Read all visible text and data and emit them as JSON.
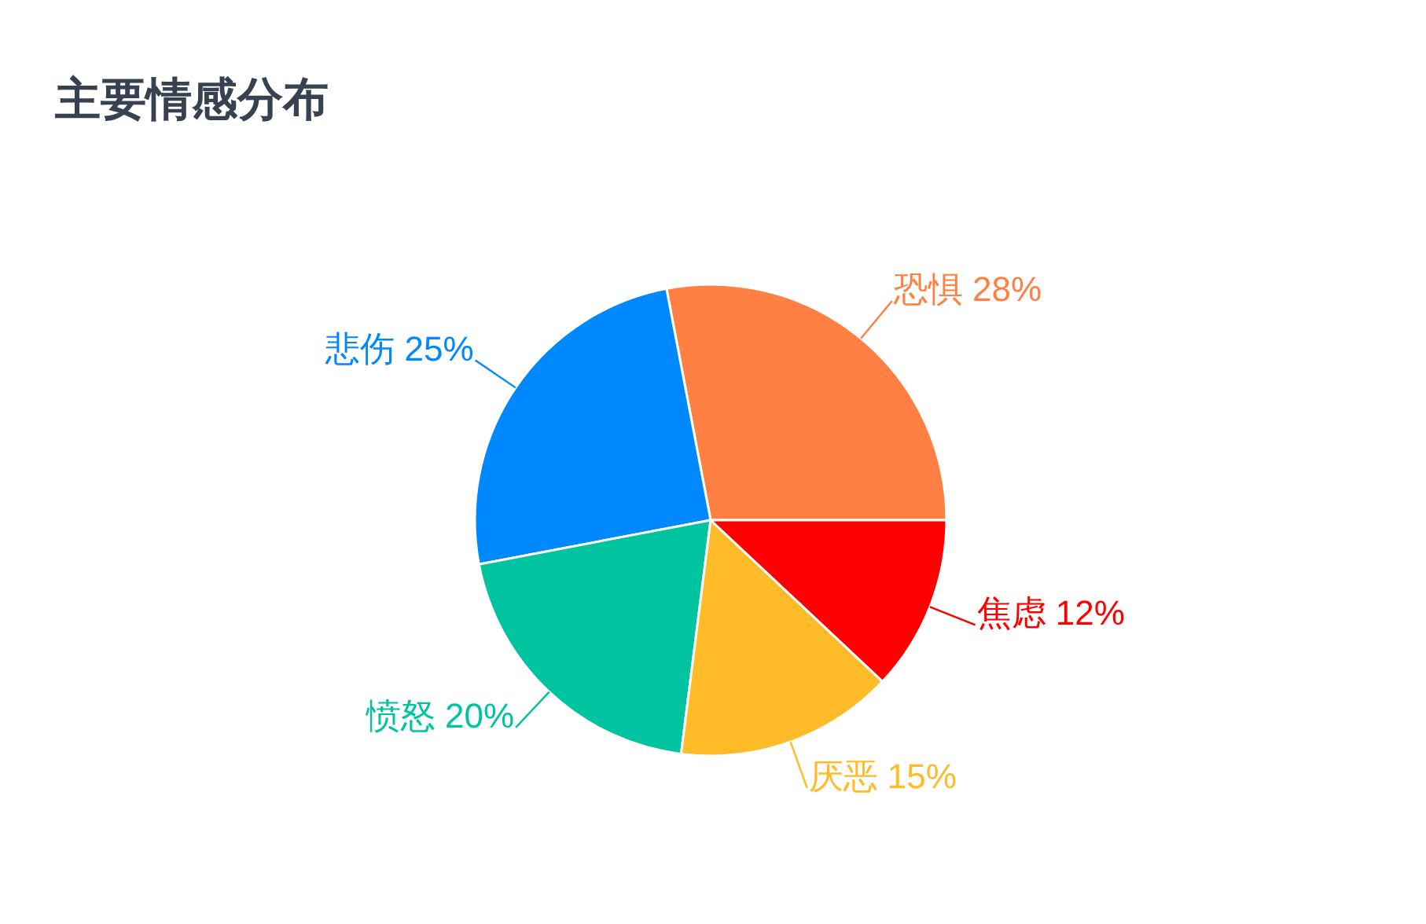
{
  "chart_data": {
    "type": "pie",
    "title": "主要情感分布",
    "categories": [
      "恐惧",
      "悲伤",
      "愤怒",
      "厌恶",
      "焦虑"
    ],
    "values": [
      28,
      25,
      20,
      15,
      12
    ],
    "colors": [
      "#ff8042",
      "#0088fe",
      "#00c49f",
      "#ffbb28",
      "#ff0000"
    ],
    "value_labels": [
      "28%",
      "25%",
      "20%",
      "15%",
      "12%"
    ]
  }
}
